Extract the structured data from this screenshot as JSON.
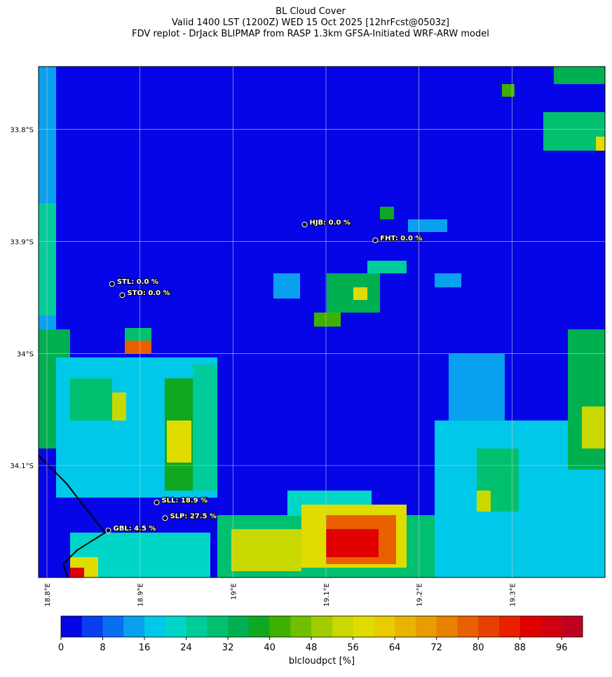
{
  "chart_data": {
    "type": "map",
    "title": [
      "BL Cloud Cover",
      "Valid 1400 LST (1200Z) WED 15 Oct 2025 [12hrFcst@0503z]",
      "FDV replot - DrJack BLIPMAP from RASP 1.3km GFSA-Initiated WRF-ARW model"
    ],
    "xlim": [
      18.791,
      19.4
    ],
    "ylim": [
      -34.2,
      -33.744
    ],
    "xticks": [
      {
        "value": 18.8,
        "label": "18.8°E"
      },
      {
        "value": 18.9,
        "label": "18.9°E"
      },
      {
        "value": 19.0,
        "label": "19°E"
      },
      {
        "value": 19.1,
        "label": "19.1°E"
      },
      {
        "value": 19.2,
        "label": "19.2°E"
      },
      {
        "value": 19.3,
        "label": "19.3°E"
      }
    ],
    "yticks": [
      {
        "value": -33.8,
        "label": "33.8°S"
      },
      {
        "value": -33.9,
        "label": "33.9°S"
      },
      {
        "value": -34.0,
        "label": "34°S"
      },
      {
        "value": -34.1,
        "label": "34.1°S"
      }
    ],
    "grid": true,
    "stations": [
      {
        "label": "HJB: 0.0 %",
        "lon": 19.077,
        "lat": -33.885
      },
      {
        "label": "FHT: 0.0 %",
        "lon": 19.153,
        "lat": -33.899
      },
      {
        "label": "STL: 0.0 %",
        "lon": 18.87,
        "lat": -33.938
      },
      {
        "label": "STO: 0.0 %",
        "lon": 18.881,
        "lat": -33.948
      },
      {
        "label": "SLL: 18.9 %",
        "lon": 18.918,
        "lat": -34.133
      },
      {
        "label": "SLP: 27.5 %",
        "lon": 18.927,
        "lat": -34.147
      },
      {
        "label": "GBL: 4.5 %",
        "lon": 18.866,
        "lat": -34.158
      }
    ],
    "colorbar": {
      "label": "blcloudpct [%]",
      "lim": [
        0,
        100
      ],
      "ticks": [
        0,
        8,
        16,
        24,
        32,
        40,
        48,
        56,
        64,
        72,
        80,
        88,
        96
      ],
      "colors": [
        "#0505e8",
        "#0a3ef0",
        "#0a6ef0",
        "#0aa0f0",
        "#00c8e8",
        "#00d6c8",
        "#00cc9a",
        "#00c070",
        "#00b050",
        "#10a820",
        "#40b000",
        "#70c000",
        "#a0cc00",
        "#c8d800",
        "#e0dc00",
        "#e8cc00",
        "#e8b400",
        "#e89c00",
        "#e88000",
        "#e86000",
        "#e84000",
        "#e82000",
        "#e00000",
        "#d00010",
        "#c00020"
      ]
    }
  }
}
